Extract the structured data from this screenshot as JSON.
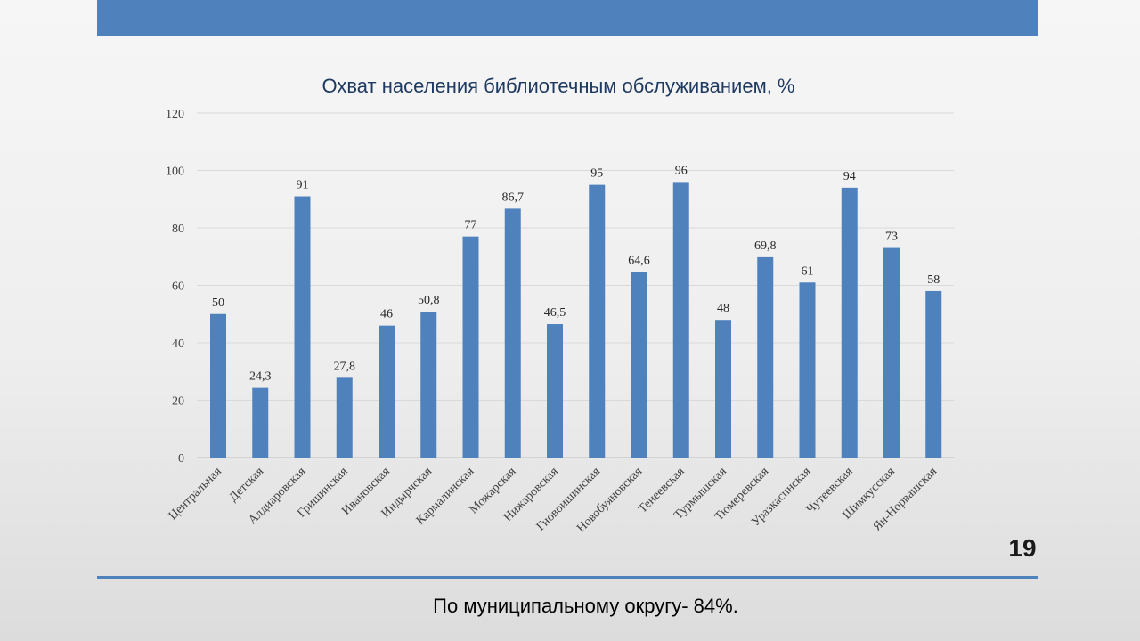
{
  "slide": {
    "number": "19",
    "footer": "По муниципальному округу- 84%."
  },
  "colors": {
    "accent": "#4f81bd",
    "bar": "#4f81bd",
    "grid": "#d9d9d9",
    "title": "#1f3a60"
  },
  "chart_data": {
    "type": "bar",
    "title": "Охват  населения библиотечным обслуживанием, %",
    "xlabel": "",
    "ylabel": "",
    "ylim": [
      0,
      120
    ],
    "yticks": [
      0,
      20,
      40,
      60,
      80,
      100,
      120
    ],
    "grid": true,
    "legend": "none",
    "categories": [
      "Центральная",
      "Детская",
      "Алдиаровская",
      "Гришинская",
      "Ивановская",
      "Индырчская",
      "Кармалинская",
      "Можарская",
      "Нижаровская",
      "Гновоишинская",
      "Новобуяновская",
      "Тенеевская",
      "Турмышская",
      "Тюмеревская",
      "Уразкасинская",
      "Чутеевская",
      "Шимкусская",
      "Ян-Норвашская"
    ],
    "values": [
      50,
      24.3,
      91,
      27.8,
      46,
      50.8,
      77,
      86.7,
      46.5,
      95,
      64.6,
      96,
      48,
      69.8,
      61,
      94,
      73,
      58
    ],
    "value_labels": [
      "50",
      "24,3",
      "91",
      "27,8",
      "46",
      "50,8",
      "77",
      "86,7",
      "46,5",
      "95",
      "64,6",
      "96",
      "48",
      "69,8",
      "61",
      "94",
      "73",
      "58"
    ]
  }
}
